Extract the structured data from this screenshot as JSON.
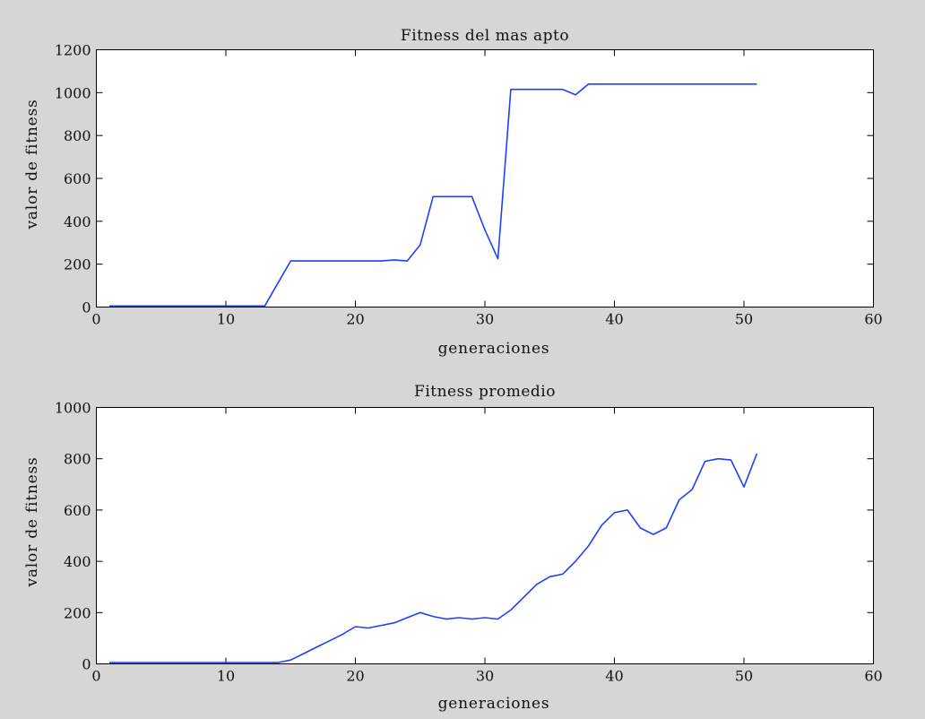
{
  "chart_data": [
    {
      "type": "line",
      "title": "Fitness del mas apto",
      "xlabel": "generaciones",
      "ylabel": "valor de fitness",
      "xlim": [
        0,
        60
      ],
      "ylim": [
        0,
        1200
      ],
      "xticks": [
        0,
        10,
        20,
        30,
        40,
        50,
        60
      ],
      "yticks": [
        0,
        200,
        400,
        600,
        800,
        1000,
        1200
      ],
      "grid": false,
      "line_color": "#1f3fff",
      "series": [
        {
          "x": [
            1,
            2,
            3,
            4,
            5,
            6,
            7,
            8,
            9,
            10,
            11,
            12,
            13,
            14,
            15,
            16,
            17,
            18,
            19,
            20,
            21,
            22,
            23,
            24,
            25,
            26,
            27,
            28,
            29,
            30,
            31,
            32,
            33,
            34,
            35,
            36,
            37,
            38,
            39,
            40,
            41,
            42,
            43,
            44,
            45,
            46,
            47,
            48,
            49,
            50,
            51
          ],
          "y": [
            5,
            5,
            5,
            5,
            5,
            5,
            5,
            5,
            5,
            5,
            5,
            5,
            5,
            110,
            215,
            215,
            215,
            215,
            215,
            215,
            215,
            215,
            220,
            215,
            290,
            515,
            515,
            515,
            515,
            360,
            225,
            1015,
            1015,
            1015,
            1015,
            1015,
            990,
            1040,
            1040,
            1040,
            1040,
            1040,
            1040,
            1040,
            1040,
            1040,
            1040,
            1040,
            1040,
            1040,
            1040
          ]
        }
      ]
    },
    {
      "type": "line",
      "title": "Fitness promedio",
      "xlabel": "generaciones",
      "ylabel": "valor de fitness",
      "xlim": [
        0,
        60
      ],
      "ylim": [
        0,
        1000
      ],
      "xticks": [
        0,
        10,
        20,
        30,
        40,
        50,
        60
      ],
      "yticks": [
        0,
        200,
        400,
        600,
        800,
        1000
      ],
      "grid": false,
      "line_color": "#1f3fff",
      "series": [
        {
          "x": [
            1,
            2,
            3,
            4,
            5,
            6,
            7,
            8,
            9,
            10,
            11,
            12,
            13,
            14,
            15,
            16,
            17,
            18,
            19,
            20,
            21,
            22,
            23,
            24,
            25,
            26,
            27,
            28,
            29,
            30,
            31,
            32,
            33,
            34,
            35,
            36,
            37,
            38,
            39,
            40,
            41,
            42,
            43,
            44,
            45,
            46,
            47,
            48,
            49,
            50,
            51
          ],
          "y": [
            5,
            5,
            5,
            5,
            5,
            5,
            5,
            5,
            5,
            5,
            5,
            5,
            5,
            5,
            15,
            40,
            65,
            90,
            115,
            145,
            140,
            150,
            160,
            180,
            200,
            185,
            175,
            180,
            175,
            180,
            175,
            210,
            260,
            310,
            340,
            350,
            400,
            460,
            540,
            590,
            600,
            530,
            505,
            530,
            640,
            680,
            790,
            800,
            795,
            690,
            820
          ]
        }
      ]
    }
  ]
}
